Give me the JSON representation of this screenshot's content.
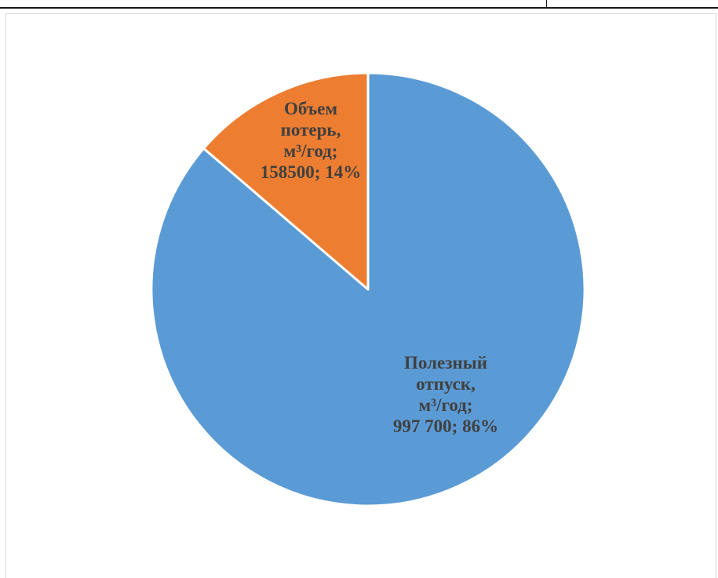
{
  "chart_data": {
    "type": "pie",
    "title": "",
    "start_angle_deg": 0,
    "direction": "clockwise",
    "slices": [
      {
        "name": "Полезный отпуск, м³/год",
        "value": 997700,
        "percent": 86,
        "color": "#5b9bd5",
        "label_lines": [
          "Полезный",
          "отпуск,",
          "м³/год;",
          "997 700; 86%"
        ]
      },
      {
        "name": "Объем потерь, м³/год",
        "value": 158500,
        "percent": 14,
        "color": "#ed7d31",
        "label_lines": [
          "Объем",
          "потерь,",
          "м³/год;",
          "158500; 14%"
        ]
      }
    ],
    "legend": "none",
    "slice_border_color": "#ffffff"
  }
}
